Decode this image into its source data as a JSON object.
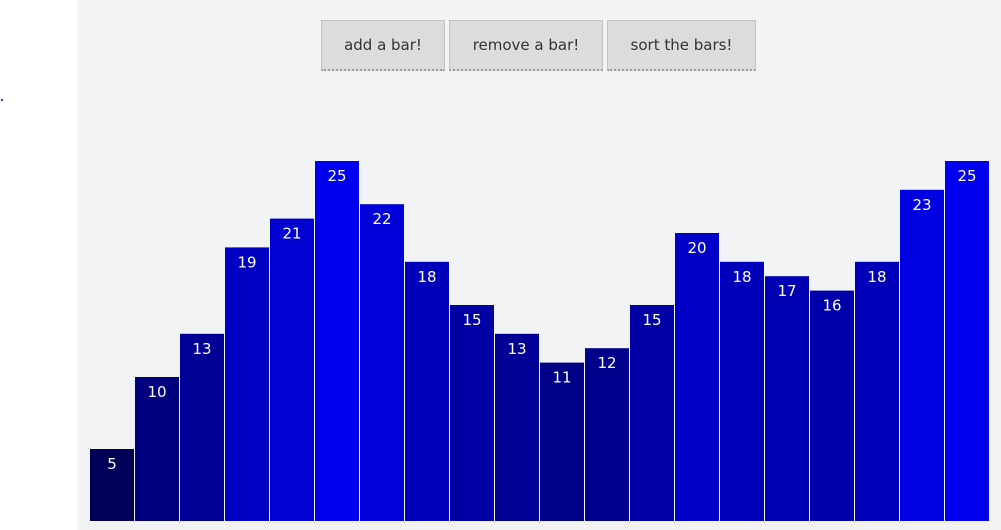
{
  "toolbar": {
    "add_label": "add a bar!",
    "remove_label": "remove a bar!",
    "sort_label": "sort the bars!"
  },
  "chart_data": {
    "type": "bar",
    "values": [
      5,
      10,
      13,
      19,
      21,
      25,
      22,
      18,
      15,
      13,
      11,
      12,
      15,
      20,
      18,
      17,
      16,
      18,
      23,
      25
    ],
    "ylim": [
      0,
      25
    ],
    "color_dark": "#000033",
    "color_bright": "#0000ef",
    "label_color_inside": "#ffffff",
    "label_color_outside": "#333333"
  }
}
